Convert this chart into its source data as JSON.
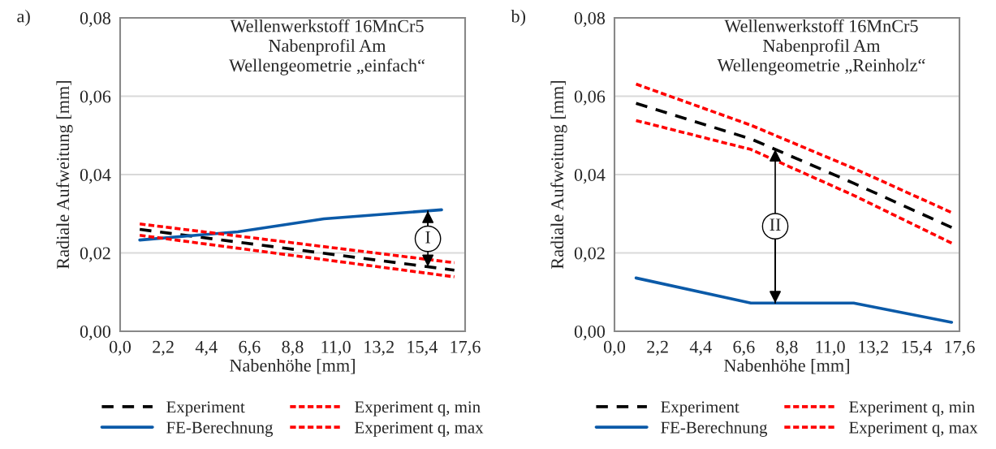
{
  "chart_data": [
    {
      "type": "line",
      "title": "Wellenwerkstoff 16MnCr5\nNabenprofil Am\nWellengeometrie „einfach“",
      "xlabel": "Nabenhöhe [mm]",
      "ylabel": "Radiale Aufweitung [mm]",
      "annotations": [
        "a)",
        {
          "text": "I",
          "x": 15.7,
          "y": 0.0307
        }
      ],
      "series": [
        {
          "name": "Experiment",
          "color": "#000000",
          "line_style": "dashed",
          "x": [
            1.0,
            17.05
          ],
          "values": [
            0.026,
            0.0156
          ]
        },
        {
          "name": "FE-Berechnung",
          "color": "#0b5aa8",
          "line_style": "solid",
          "x": [
            1.0,
            6.0,
            10.4,
            16.4
          ],
          "values": [
            0.0233,
            0.0254,
            0.0287,
            0.031
          ]
        },
        {
          "name": "Experiment q, min",
          "color": "#ff0000",
          "line_style": "dashed",
          "x": [
            1.0,
            17.05
          ],
          "values": [
            0.0245,
            0.0139
          ]
        },
        {
          "name": "Experiment q, max",
          "color": "#ff0000",
          "line_style": "dashed",
          "x": [
            1.0,
            17.05
          ],
          "values": [
            0.0274,
            0.0175
          ]
        }
      ],
      "xlim": [
        0,
        17.6
      ],
      "xticks": [
        {
          "value": 0,
          "label": "0,0"
        },
        {
          "value": 2.2,
          "label": "2,2"
        },
        {
          "value": 4.4,
          "label": "4,4"
        },
        {
          "value": 6.6,
          "label": "6,6"
        },
        {
          "value": 8.8,
          "label": "8,8"
        },
        {
          "value": 11.0,
          "label": "11,0"
        },
        {
          "value": 13.2,
          "label": "13,2"
        },
        {
          "value": 15.4,
          "label": "15,4"
        },
        {
          "value": 17.6,
          "label": "17,6"
        }
      ],
      "ylim": [
        0,
        0.08
      ],
      "yticks": [
        {
          "value": 0,
          "label": "0,00"
        },
        {
          "value": 0.02,
          "label": "0,02"
        },
        {
          "value": 0.04,
          "label": "0,04"
        },
        {
          "value": 0.06,
          "label": "0,06"
        },
        {
          "value": 0.08,
          "label": "0,08"
        }
      ],
      "grid": "y",
      "legend": "bottom"
    },
    {
      "type": "line",
      "title": "Wellenwerkstoff 16MnCr5\nNabenprofil Am\nWellengeometrie „Reinholz“",
      "xlabel": "Nabenhöhe [mm]",
      "ylabel": "Radiale Aufweitung [mm]",
      "annotations": [
        "b)",
        {
          "text": "II",
          "x": 8.2,
          "y": 0.0072
        }
      ],
      "series": [
        {
          "name": "Experiment",
          "color": "#000000",
          "line_style": "dashed",
          "x": [
            1.1,
            6.96,
            12.2,
            17.2
          ],
          "values": [
            0.0582,
            0.0491,
            0.0378,
            0.0265
          ]
        },
        {
          "name": "FE-Berechnung",
          "color": "#0b5aa8",
          "line_style": "solid",
          "x": [
            1.1,
            6.96,
            12.2,
            17.2
          ],
          "values": [
            0.0136,
            0.0072,
            0.0072,
            0.0023
          ]
        },
        {
          "name": "Experiment q, min",
          "color": "#ff0000",
          "line_style": "dashed",
          "x": [
            1.1,
            6.96,
            12.2,
            17.2
          ],
          "values": [
            0.0538,
            0.0464,
            0.0347,
            0.0225
          ]
        },
        {
          "name": "Experiment q, max",
          "color": "#ff0000",
          "line_style": "dashed",
          "x": [
            1.1,
            6.96,
            12.2,
            17.2
          ],
          "values": [
            0.0631,
            0.0526,
            0.0416,
            0.0303
          ]
        }
      ],
      "xlim": [
        0,
        17.6
      ],
      "xticks": [
        {
          "value": 0,
          "label": "0,0"
        },
        {
          "value": 2.2,
          "label": "2,2"
        },
        {
          "value": 4.4,
          "label": "4,4"
        },
        {
          "value": 6.6,
          "label": "6,6"
        },
        {
          "value": 8.8,
          "label": "8,8"
        },
        {
          "value": 11.0,
          "label": "11,0"
        },
        {
          "value": 13.2,
          "label": "13,2"
        },
        {
          "value": 15.4,
          "label": "15,4"
        },
        {
          "value": 17.6,
          "label": "17,6"
        }
      ],
      "ylim": [
        0,
        0.08
      ],
      "yticks": [
        {
          "value": 0,
          "label": "0,00"
        },
        {
          "value": 0.02,
          "label": "0,02"
        },
        {
          "value": 0.04,
          "label": "0,04"
        },
        {
          "value": 0.06,
          "label": "0,06"
        },
        {
          "value": 0.08,
          "label": "0,08"
        }
      ],
      "grid": "y",
      "legend": "bottom"
    }
  ]
}
